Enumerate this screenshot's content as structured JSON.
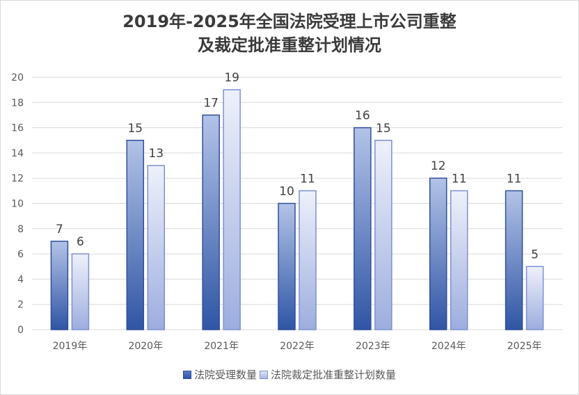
{
  "chart_data": {
    "type": "bar",
    "title_line1": "2019年-2025年全国法院受理上市公司重整",
    "title_line2": "及裁定批准重整计划情况",
    "categories": [
      "2019年",
      "2020年",
      "2021年",
      "2022年",
      "2023年",
      "2024年",
      "2025年"
    ],
    "series": [
      {
        "name": "法院受理数量",
        "values": [
          7,
          15,
          17,
          10,
          16,
          12,
          11
        ],
        "color": "#3d63b5"
      },
      {
        "name": "法院裁定批准重整计划数量",
        "values": [
          6,
          13,
          19,
          11,
          15,
          11,
          5
        ],
        "color": "#b4c0e8"
      }
    ],
    "ylim": [
      0,
      20
    ],
    "yticks": [
      0,
      2,
      4,
      6,
      8,
      10,
      12,
      14,
      16,
      18,
      20
    ],
    "grid": true,
    "legend_position": "bottom"
  }
}
